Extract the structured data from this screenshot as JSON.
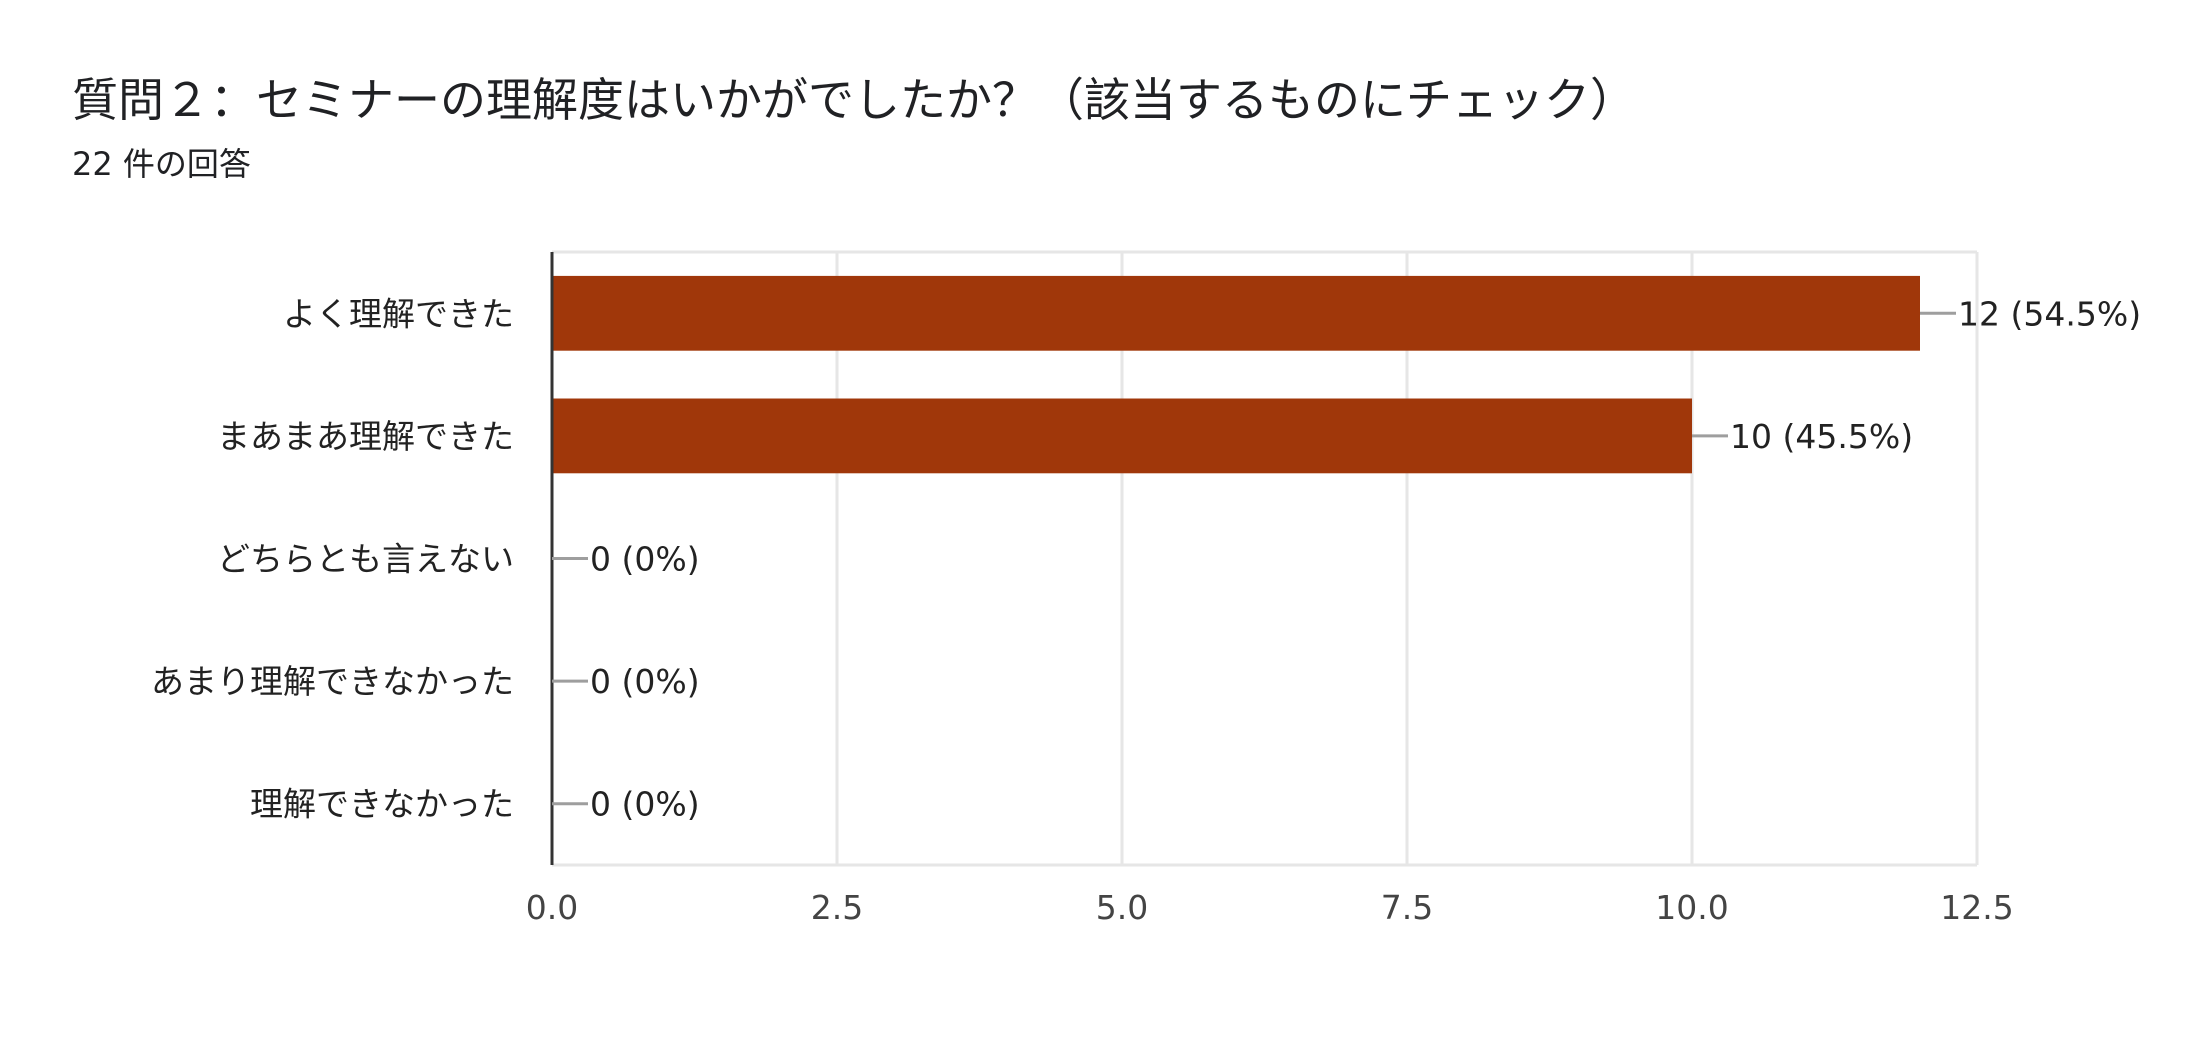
{
  "header": {
    "title": "質問２：セミナーの理解度はいかがでしたか？（該当するものにチェック）",
    "subtitle": "22 件の回答"
  },
  "colors": {
    "bar": "#a0370a",
    "grid": "#e6e6e6",
    "axis": "#333333",
    "leader": "#9e9e9e"
  },
  "chart_data": {
    "type": "bar",
    "orientation": "horizontal",
    "categories": [
      "よく理解できた",
      "まあまあ理解できた",
      "どちらとも言えない",
      "あまり理解できなかった",
      "理解できなかった"
    ],
    "values": [
      12,
      10,
      0,
      0,
      0
    ],
    "data_labels": [
      "12 (54.5%)",
      "10 (45.5%)",
      "0 (0%)",
      "0 (0%)",
      "0 (0%)"
    ],
    "xlim": [
      0,
      12.5
    ],
    "x_ticks": [
      0,
      2.5,
      5,
      7.5,
      10,
      12.5
    ],
    "x_tick_labels": [
      "0.0",
      "2.5",
      "5.0",
      "7.5",
      "10.0",
      "12.5"
    ],
    "grid": true,
    "legend": "none"
  }
}
